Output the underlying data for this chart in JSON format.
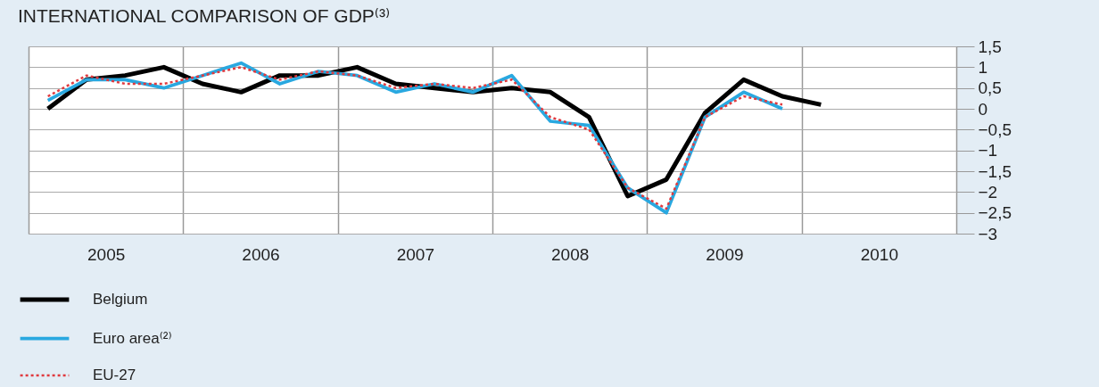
{
  "chart_data": {
    "type": "line",
    "title": "INTERNATIONAL COMPARISON OF GDP⁽³⁾",
    "x": [
      2005.125,
      2005.375,
      2005.625,
      2005.875,
      2006.125,
      2006.375,
      2006.625,
      2006.875,
      2007.125,
      2007.375,
      2007.625,
      2007.875,
      2008.125,
      2008.375,
      2008.625,
      2008.875,
      2009.125,
      2009.375,
      2009.625,
      2009.875,
      2010.125
    ],
    "series": [
      {
        "name": "Belgium",
        "color": "#000000",
        "line_style": "solid",
        "values": [
          0.0,
          0.7,
          0.8,
          1.0,
          0.6,
          0.4,
          0.8,
          0.8,
          1.0,
          0.6,
          0.5,
          0.4,
          0.5,
          0.4,
          -0.2,
          -2.1,
          -1.7,
          -0.1,
          0.7,
          0.3,
          0.1
        ]
      },
      {
        "name": "Euro area⁽²⁾",
        "color": "#29a8e0",
        "line_style": "solid",
        "values": [
          0.2,
          0.7,
          0.7,
          0.5,
          0.8,
          1.1,
          0.6,
          0.9,
          0.8,
          0.4,
          0.6,
          0.4,
          0.8,
          -0.3,
          -0.4,
          -1.9,
          -2.5,
          -0.2,
          0.4,
          0.0,
          null
        ]
      },
      {
        "name": "EU-27",
        "color": "#e0393e",
        "line_style": "dotted",
        "values": [
          0.3,
          0.8,
          0.6,
          0.6,
          0.8,
          1.0,
          0.7,
          0.9,
          0.8,
          0.5,
          0.6,
          0.5,
          0.7,
          -0.2,
          -0.5,
          -1.9,
          -2.4,
          -0.2,
          0.3,
          0.1,
          null
        ]
      }
    ],
    "xlim": [
      2005,
      2011
    ],
    "xticks": [
      {
        "value": 2005,
        "label": null
      },
      {
        "value": 2005.5,
        "label": "2005"
      },
      {
        "value": 2006,
        "label": null
      },
      {
        "value": 2006.5,
        "label": "2006"
      },
      {
        "value": 2007,
        "label": null
      },
      {
        "value": 2007.5,
        "label": "2007"
      },
      {
        "value": 2008,
        "label": null
      },
      {
        "value": 2008.5,
        "label": "2008"
      },
      {
        "value": 2009,
        "label": null
      },
      {
        "value": 2009.5,
        "label": "2009"
      },
      {
        "value": 2010,
        "label": null
      },
      {
        "value": 2010.5,
        "label": "2010"
      },
      {
        "value": 2011,
        "label": null
      }
    ],
    "ylim": [
      -3,
      1.5
    ],
    "yticks": [
      {
        "value": 1.5,
        "label": "1,5"
      },
      1,
      {
        "value": 0.5,
        "label": "0,5"
      },
      0,
      {
        "value": -0.5,
        "label": "−0,5"
      },
      {
        "value": -1,
        "label": "−1"
      },
      {
        "value": -1.5,
        "label": "−1,5"
      },
      {
        "value": -2,
        "label": "−2"
      },
      {
        "value": -2.5,
        "label": "−2,5"
      },
      {
        "value": -3,
        "label": "−3"
      }
    ],
    "grid": true,
    "legend": "bottom left",
    "marker": "none"
  }
}
